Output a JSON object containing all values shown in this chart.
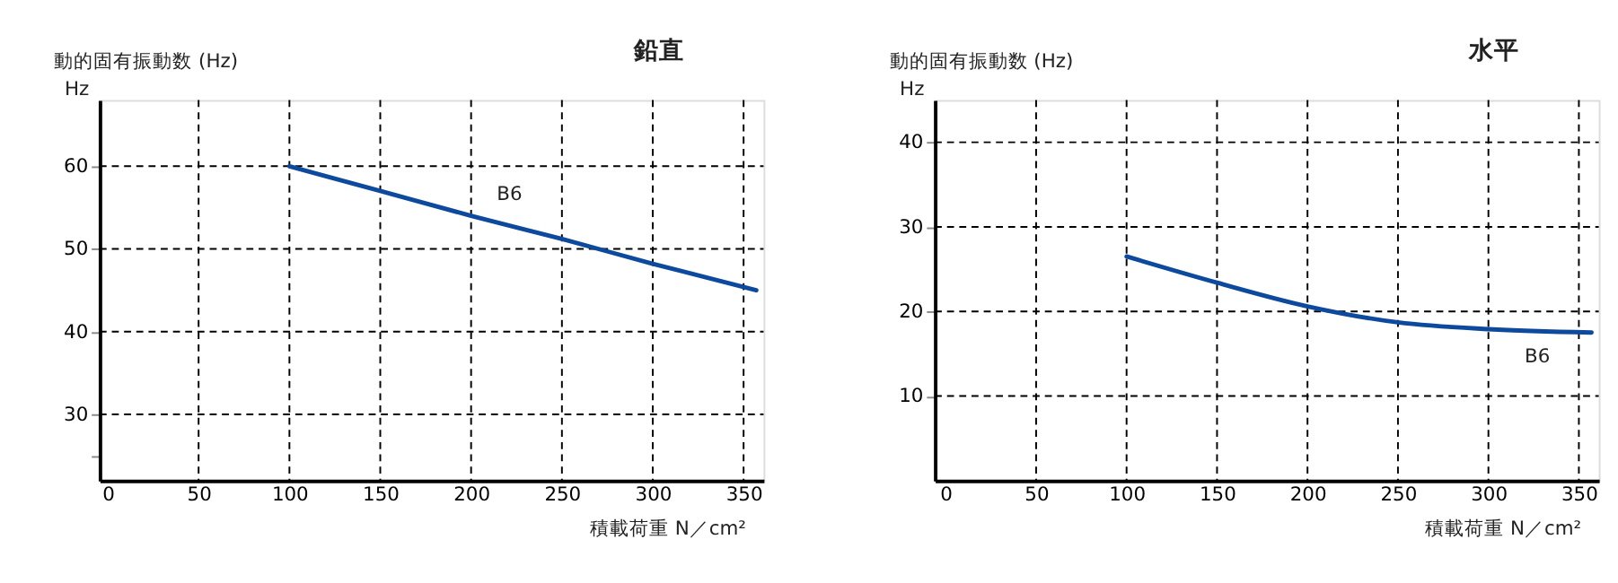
{
  "chart_data": [
    {
      "type": "line",
      "title": "鉛直",
      "ylabel": "動的固有振動数 (Hz)",
      "xlabel": "積載荷重 N／cm²",
      "annotations": [
        "Hz"
      ],
      "x": [
        100,
        150,
        200,
        250,
        300,
        357
      ],
      "series": [
        {
          "name": "B6",
          "color": "#0d4a9e",
          "values": [
            60,
            57,
            54,
            51.2,
            48.2,
            45
          ]
        }
      ],
      "xlim": [
        -4.5,
        361
      ],
      "xticks": [
        0,
        50,
        100,
        150,
        200,
        250,
        300,
        350
      ],
      "ylim": [
        22,
        68
      ],
      "yticks": [
        {
          "value": 25,
          "label": null
        },
        30,
        40,
        50,
        60
      ],
      "grid": true,
      "line_style": "solid",
      "marker": "none"
    },
    {
      "type": "line",
      "title": "水平",
      "ylabel": "動的固有振動数 (Hz)",
      "xlabel": "積載荷重 N／cm²",
      "annotations": [
        "Hz"
      ],
      "x": [
        100,
        150,
        200,
        250,
        300,
        357
      ],
      "series": [
        {
          "name": "B6",
          "color": "#0d4a9e",
          "values": [
            26.5,
            23.4,
            20.6,
            18.7,
            17.9,
            17.5
          ]
        }
      ],
      "xlim": [
        -6,
        361
      ],
      "xticks": [
        0,
        50,
        100,
        150,
        200,
        250,
        300,
        350
      ],
      "ylim": [
        0,
        45
      ],
      "yticks": [
        10,
        20,
        30,
        40
      ],
      "grid": true,
      "line_style": "solid",
      "marker": "none"
    }
  ]
}
